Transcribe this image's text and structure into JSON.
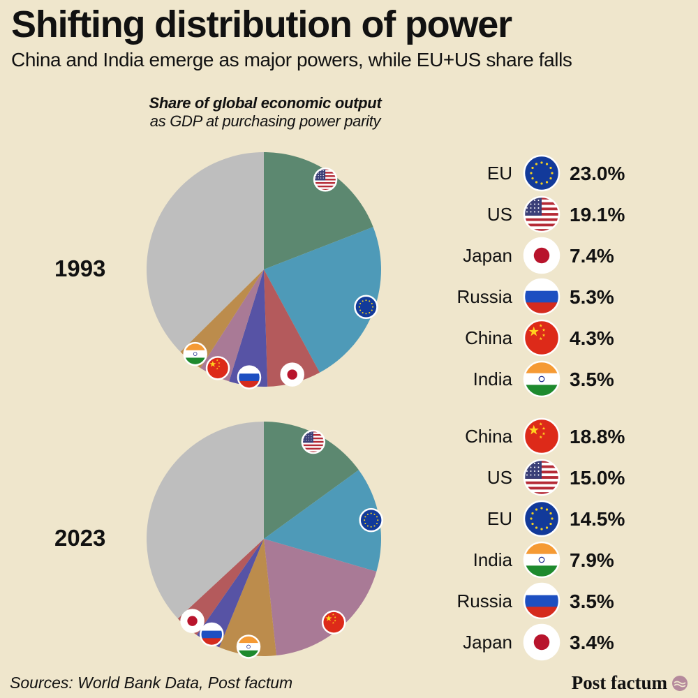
{
  "header": {
    "title": "Shifting distribution of power",
    "subtitle": "China and India emerge as major powers, while EU+US share falls"
  },
  "chart_heading": {
    "title": "Share of global economic output",
    "subtitle": "as GDP at purchasing power parity"
  },
  "footer": {
    "source": "Sources: World Bank Data, Post factum",
    "brand": "Post factum"
  },
  "colors": {
    "background": "#efe6cc",
    "US": "#5c8870",
    "EU": "#4e9ab8",
    "Japan": "#b45a5c",
    "Russia": "#5753a5",
    "China": "#a97a96",
    "India": "#bc8c4c",
    "Rest": "#bebebe"
  },
  "chart_data": [
    {
      "type": "pie",
      "label": "1993",
      "slices": [
        {
          "name": "US",
          "value": 19.1
        },
        {
          "name": "EU",
          "value": 23.0
        },
        {
          "name": "Japan",
          "value": 7.4
        },
        {
          "name": "Russia",
          "value": 5.3
        },
        {
          "name": "China",
          "value": 4.3
        },
        {
          "name": "India",
          "value": 3.5
        },
        {
          "name": "Rest",
          "value": 37.4
        }
      ],
      "legend": [
        {
          "name": "EU",
          "text": "23.0%",
          "flag": "eu-flag-icon"
        },
        {
          "name": "US",
          "text": "19.1%",
          "flag": "us-flag-icon"
        },
        {
          "name": "Japan",
          "text": "7.4%",
          "flag": "japan-flag-icon"
        },
        {
          "name": "Russia",
          "text": "5.3%",
          "flag": "russia-flag-icon"
        },
        {
          "name": "China",
          "text": "4.3%",
          "flag": "china-flag-icon"
        },
        {
          "name": "India",
          "text": "3.5%",
          "flag": "india-flag-icon"
        }
      ]
    },
    {
      "type": "pie",
      "label": "2023",
      "slices": [
        {
          "name": "US",
          "value": 15.0
        },
        {
          "name": "EU",
          "value": 14.5
        },
        {
          "name": "China",
          "value": 18.8
        },
        {
          "name": "India",
          "value": 7.9
        },
        {
          "name": "Russia",
          "value": 3.5
        },
        {
          "name": "Japan",
          "value": 3.4
        },
        {
          "name": "Rest",
          "value": 36.9
        }
      ],
      "legend": [
        {
          "name": "China",
          "text": "18.8%",
          "flag": "china-flag-icon"
        },
        {
          "name": "US",
          "text": "15.0%",
          "flag": "us-flag-icon"
        },
        {
          "name": "EU",
          "text": "14.5%",
          "flag": "eu-flag-icon"
        },
        {
          "name": "India",
          "text": "7.9%",
          "flag": "india-flag-icon"
        },
        {
          "name": "Russia",
          "text": "3.5%",
          "flag": "russia-flag-icon"
        },
        {
          "name": "Japan",
          "text": "3.4%",
          "flag": "japan-flag-icon"
        }
      ]
    }
  ]
}
